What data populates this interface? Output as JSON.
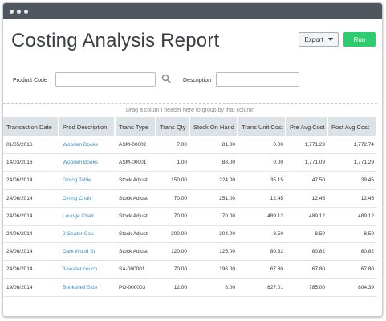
{
  "header": {
    "title": "Costing Analysis Report",
    "export_label": "Export",
    "run_label": "Run"
  },
  "filters": {
    "product_code_label": "Product Code",
    "product_code_value": "",
    "description_label": "Description",
    "description_value": ""
  },
  "grid": {
    "group_hint": "Drag a column header here to group by that column",
    "columns": [
      "Transaction Date",
      "Prod Description",
      "Trans Type",
      "Trans Qty",
      "Stock On Hand",
      "Trans Unit Cost",
      "Pre Avg Cost",
      "Post Avg Cost"
    ],
    "rows": [
      [
        "01/05/2016",
        "Wooden Books",
        "ASM-00002",
        "7.00",
        "81.00",
        "0.00",
        "1,771.29",
        "1,772.74"
      ],
      [
        "14/03/2016",
        "Wooden Books",
        "ASM-00001",
        "1.00",
        "88.00",
        "0.00",
        "1,771.09",
        "1,771.29"
      ],
      [
        "24/06/2014",
        "Dining Table",
        "Stock Adjust",
        "150.00",
        "224.00",
        "35.15",
        "47.50",
        "39.45"
      ],
      [
        "24/06/2014",
        "Dining Chair",
        "Stock Adjust",
        "70.00",
        "251.00",
        "12.45",
        "12.45",
        "12.45"
      ],
      [
        "24/06/2014",
        "Lounge Chair",
        "Stock Adjust",
        "70.00",
        "70.00",
        "489.12",
        "489.12",
        "489.12"
      ],
      [
        "24/06/2014",
        "2-Seater Cou",
        "Stock Adjust",
        "300.00",
        "304.00",
        "8.50",
        "8.50",
        "8.50"
      ],
      [
        "24/06/2014",
        "Dark Wood St",
        "Stock Adjust",
        "120.00",
        "125.00",
        "80.82",
        "80.82",
        "80.82"
      ],
      [
        "24/06/2014",
        "3-seater couch",
        "SA-000001",
        "70.00",
        "196.00",
        "67.80",
        "67.80",
        "67.80"
      ],
      [
        "19/06/2014",
        "Bookshelf Side",
        "PO-000003",
        "12.00",
        "8.00",
        "827.01",
        "785.00",
        "804.39"
      ]
    ]
  },
  "colors": {
    "accent_green": "#2ecc71",
    "link_blue": "#3b8fc4",
    "titlebar": "#4f565e",
    "header_bg": "#dde2e7"
  }
}
